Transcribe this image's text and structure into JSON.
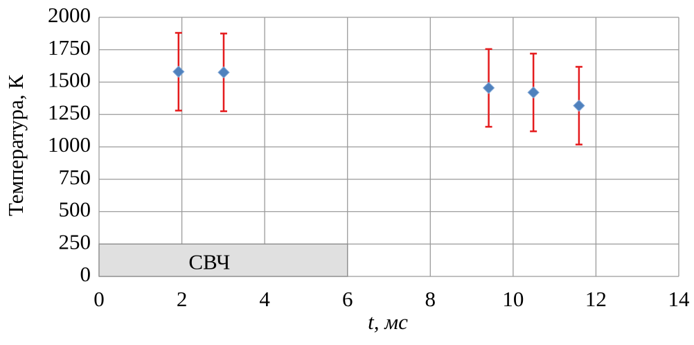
{
  "chart_data": {
    "type": "scatter",
    "x_label": "t, мс",
    "y_label": "Температура, К",
    "xlim": [
      0,
      14
    ],
    "xticks": [
      0,
      2,
      4,
      6,
      8,
      10,
      12,
      14
    ],
    "ylim": [
      0,
      2000
    ],
    "yticks": [
      0,
      250,
      500,
      750,
      1000,
      1250,
      1500,
      1750,
      2000
    ],
    "grid": true,
    "series": [
      {
        "name": "Температура",
        "color": "#4f81bd",
        "error_color": "#e41a1c",
        "x": [
          1.92,
          3.01,
          9.41,
          10.49,
          11.59
        ],
        "values": [
          1580,
          1575,
          1455,
          1420,
          1318
        ],
        "errors": [
          300,
          300,
          300,
          300,
          300
        ]
      }
    ],
    "band": {
      "label": "СВЧ",
      "xrange": [
        0,
        6
      ],
      "yrange": [
        0,
        250
      ],
      "color": "#e0e0e0"
    }
  }
}
